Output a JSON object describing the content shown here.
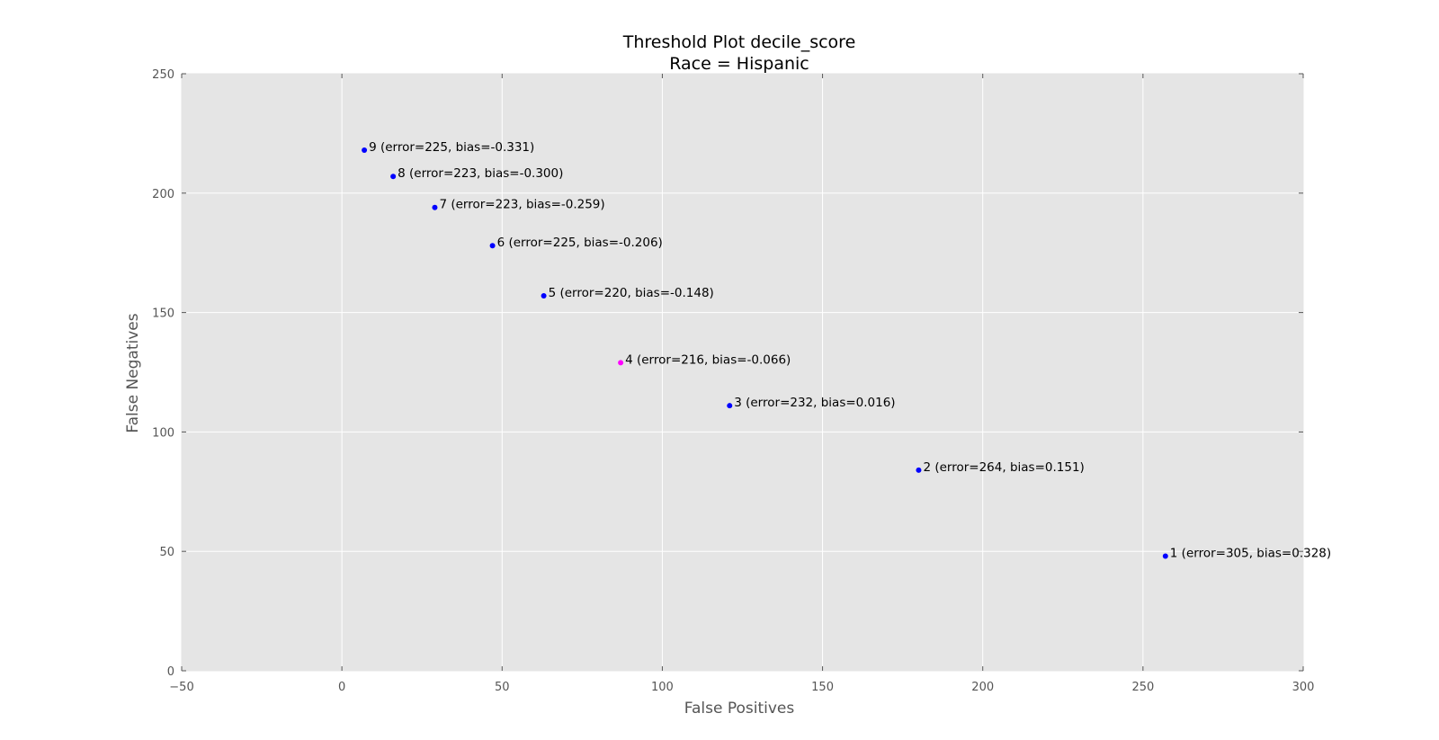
{
  "chart_data": {
    "type": "scatter",
    "title": "Threshold Plot decile_score",
    "subtitle": "Race = Hispanic",
    "xlabel": "False Positives",
    "ylabel": "False Negatives",
    "xlim": [
      -50,
      300
    ],
    "ylim": [
      0,
      250
    ],
    "xticks": [
      -50,
      0,
      50,
      100,
      150,
      200,
      250,
      300
    ],
    "yticks": [
      0,
      50,
      100,
      150,
      200,
      250
    ],
    "xtick_labels": [
      "−50",
      "0",
      "50",
      "100",
      "150",
      "200",
      "250",
      "300"
    ],
    "ytick_labels": [
      "0",
      "50",
      "100",
      "150",
      "200",
      "250"
    ],
    "grid": true,
    "colors": {
      "background": "#e5e5e5",
      "grid": "#ffffff",
      "point": "#0000ff",
      "highlight": "#ff00ff"
    },
    "points": [
      {
        "x": 257,
        "y": 48,
        "label": "1 (error=305, bias=0.328)",
        "highlight": false
      },
      {
        "x": 180,
        "y": 84,
        "label": "2 (error=264, bias=0.151)",
        "highlight": false
      },
      {
        "x": 121,
        "y": 111,
        "label": "3 (error=232, bias=0.016)",
        "highlight": false
      },
      {
        "x": 87,
        "y": 129,
        "label": "4 (error=216, bias=-0.066)",
        "highlight": true
      },
      {
        "x": 63,
        "y": 157,
        "label": "5 (error=220, bias=-0.148)",
        "highlight": false
      },
      {
        "x": 47,
        "y": 178,
        "label": "6 (error=225, bias=-0.206)",
        "highlight": false
      },
      {
        "x": 29,
        "y": 194,
        "label": "7 (error=223, bias=-0.259)",
        "highlight": false
      },
      {
        "x": 16,
        "y": 207,
        "label": "8 (error=223, bias=-0.300)",
        "highlight": false
      },
      {
        "x": 7,
        "y": 218,
        "label": "9 (error=225, bias=-0.331)",
        "highlight": false
      }
    ]
  }
}
